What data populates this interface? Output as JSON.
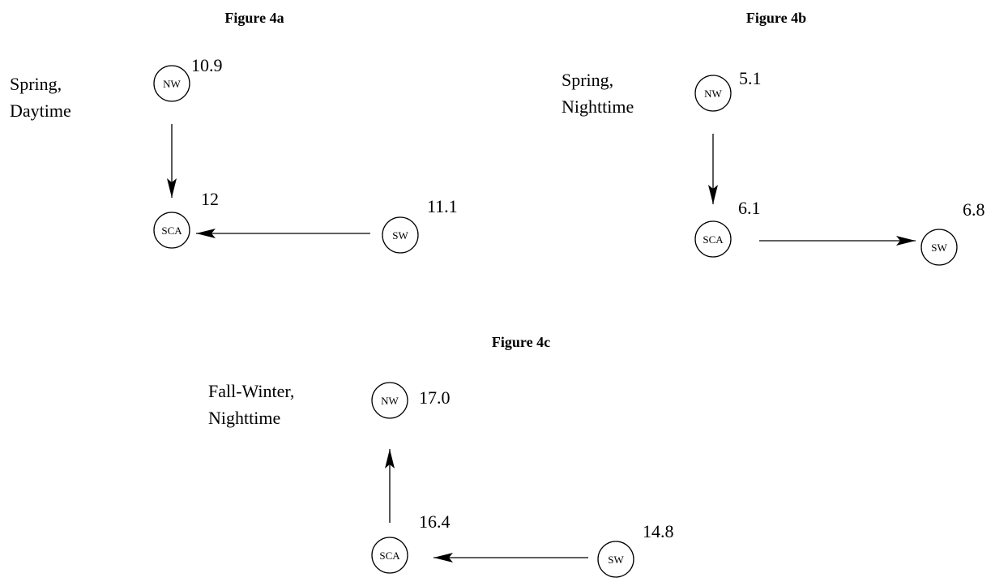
{
  "figures": [
    {
      "title": "Figure 4a",
      "label": [
        "Spring,",
        "Daytime"
      ],
      "nodes": [
        {
          "label": "NW",
          "value": "10.9"
        },
        {
          "label": "SCA",
          "value": "12"
        },
        {
          "label": "SW",
          "value": "11.1"
        }
      ]
    },
    {
      "title": "Figure 4b",
      "label": [
        "Spring,",
        "Nighttime"
      ],
      "nodes": [
        {
          "label": "NW",
          "value": "5.1"
        },
        {
          "label": "SCA",
          "value": "6.1"
        },
        {
          "label": "SW",
          "value": "6.8"
        }
      ]
    },
    {
      "title": "Figure 4c",
      "label": [
        "Fall-Winter,",
        "Nighttime"
      ],
      "nodes": [
        {
          "label": "NW",
          "value": "17.0"
        },
        {
          "label": "SCA",
          "value": "16.4"
        },
        {
          "label": "SW",
          "value": "14.8"
        }
      ]
    }
  ]
}
